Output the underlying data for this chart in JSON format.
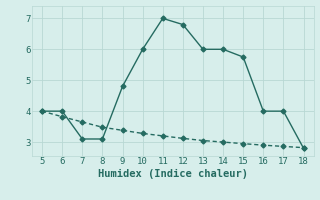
{
  "line1_x": [
    5,
    6,
    7,
    8,
    9,
    10,
    11,
    12,
    13,
    14,
    15,
    16,
    17,
    18
  ],
  "line1_y": [
    4.0,
    4.0,
    3.1,
    3.1,
    4.8,
    6.0,
    7.0,
    6.8,
    6.0,
    6.0,
    5.75,
    4.0,
    4.0,
    2.8
  ],
  "line2_x": [
    5,
    6,
    7,
    8,
    9,
    10,
    11,
    12,
    13,
    14,
    15,
    16,
    17,
    18
  ],
  "line2_y": [
    4.0,
    3.82,
    3.65,
    3.48,
    3.38,
    3.28,
    3.2,
    3.12,
    3.05,
    3.0,
    2.95,
    2.9,
    2.86,
    2.82
  ],
  "line_color": "#256b61",
  "markersize": 2.5,
  "linewidth": 1.0,
  "xlabel": "Humidex (Indice chaleur)",
  "xlim": [
    4.5,
    18.5
  ],
  "ylim": [
    2.55,
    7.4
  ],
  "xticks": [
    5,
    6,
    7,
    8,
    9,
    10,
    11,
    12,
    13,
    14,
    15,
    16,
    17,
    18
  ],
  "yticks": [
    3,
    4,
    5,
    6,
    7
  ],
  "bg_color": "#d7eeeb",
  "grid_color": "#b8d8d4",
  "font_color": "#256b61",
  "tick_fontsize": 6.5,
  "xlabel_fontsize": 7.5
}
